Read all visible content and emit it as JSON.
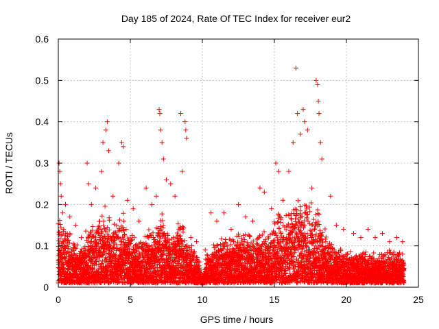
{
  "chart_data": {
    "type": "scatter",
    "title": "Day 185 of 2024, Rate Of TEC Index for receiver eur2",
    "xlabel": "GPS time / hours",
    "ylabel": "ROTI / TECUs",
    "xlim": [
      0,
      25
    ],
    "ylim": [
      0,
      0.6
    ],
    "x_ticks": [
      0,
      5,
      10,
      15,
      20,
      25
    ],
    "y_ticks": [
      0,
      0.1,
      0.2,
      0.3,
      0.4,
      0.5,
      0.6
    ],
    "grid": true,
    "legend": "none",
    "marker": "+",
    "color": "#ff0000",
    "series": [
      {
        "points": [
          [
            0.05,
            0.3
          ],
          [
            0.1,
            0.28
          ],
          [
            0.15,
            0.25
          ],
          [
            0.2,
            0.22
          ],
          [
            0.3,
            0.18
          ],
          [
            0.5,
            0.2
          ],
          [
            0.8,
            0.17
          ],
          [
            1.2,
            0.15
          ],
          [
            1.6,
            0.12
          ],
          [
            2.0,
            0.3
          ],
          [
            2.1,
            0.25
          ],
          [
            2.3,
            0.2
          ],
          [
            2.6,
            0.24
          ],
          [
            3.0,
            0.28
          ],
          [
            3.1,
            0.35
          ],
          [
            3.3,
            0.38
          ],
          [
            3.4,
            0.4
          ],
          [
            3.5,
            0.33
          ],
          [
            3.8,
            0.22
          ],
          [
            4.2,
            0.3
          ],
          [
            4.4,
            0.35
          ],
          [
            4.5,
            0.34
          ],
          [
            4.8,
            0.21
          ],
          [
            5.2,
            0.19
          ],
          [
            5.6,
            0.16
          ],
          [
            6.1,
            0.24
          ],
          [
            6.5,
            0.2
          ],
          [
            6.8,
            0.22
          ],
          [
            7.0,
            0.43
          ],
          [
            7.05,
            0.42
          ],
          [
            7.1,
            0.38
          ],
          [
            7.2,
            0.35
          ],
          [
            7.3,
            0.31
          ],
          [
            7.5,
            0.26
          ],
          [
            7.8,
            0.25
          ],
          [
            8.1,
            0.22
          ],
          [
            8.5,
            0.42
          ],
          [
            8.6,
            0.28
          ],
          [
            8.8,
            0.4
          ],
          [
            8.85,
            0.38
          ],
          [
            8.9,
            0.36
          ],
          [
            9.2,
            0.12
          ],
          [
            9.6,
            0.11
          ],
          [
            10.2,
            0.09
          ],
          [
            10.6,
            0.18
          ],
          [
            11.0,
            0.16
          ],
          [
            11.5,
            0.18
          ],
          [
            12.0,
            0.14
          ],
          [
            12.5,
            0.2
          ],
          [
            13.0,
            0.17
          ],
          [
            13.5,
            0.16
          ],
          [
            14.0,
            0.24
          ],
          [
            14.3,
            0.23
          ],
          [
            14.8,
            0.19
          ],
          [
            15.1,
            0.3
          ],
          [
            15.3,
            0.28
          ],
          [
            15.6,
            0.21
          ],
          [
            16.0,
            0.28
          ],
          [
            16.3,
            0.35
          ],
          [
            16.5,
            0.53
          ],
          [
            16.6,
            0.42
          ],
          [
            16.8,
            0.37
          ],
          [
            17.0,
            0.43
          ],
          [
            17.1,
            0.4
          ],
          [
            17.3,
            0.38
          ],
          [
            17.6,
            0.24
          ],
          [
            17.9,
            0.5
          ],
          [
            18.0,
            0.49
          ],
          [
            18.05,
            0.45
          ],
          [
            18.1,
            0.42
          ],
          [
            18.2,
            0.35
          ],
          [
            18.3,
            0.31
          ],
          [
            18.9,
            0.22
          ],
          [
            19.3,
            0.15
          ],
          [
            19.8,
            0.14
          ],
          [
            20.5,
            0.13
          ],
          [
            21.0,
            0.12
          ],
          [
            21.5,
            0.14
          ],
          [
            22.0,
            0.12
          ],
          [
            22.5,
            0.13
          ],
          [
            23.0,
            0.11
          ],
          [
            23.5,
            0.12
          ],
          [
            23.9,
            0.11
          ]
        ]
      }
    ],
    "cluster_envelope": {
      "x": [
        0.0,
        0.25,
        0.5,
        0.75,
        1.0,
        1.25,
        1.5,
        1.75,
        2.0,
        2.25,
        2.5,
        2.75,
        3.0,
        3.25,
        3.5,
        3.75,
        4.0,
        4.25,
        4.5,
        4.75,
        5.0,
        5.25,
        5.5,
        5.75,
        6.0,
        6.25,
        6.5,
        6.75,
        7.0,
        7.25,
        7.5,
        7.75,
        8.0,
        8.25,
        8.5,
        8.75,
        9.0,
        9.25,
        9.5,
        9.75,
        10.0,
        10.25,
        10.5,
        10.75,
        11.0,
        11.25,
        11.5,
        11.75,
        12.0,
        12.25,
        12.5,
        12.75,
        13.0,
        13.25,
        13.5,
        13.75,
        14.0,
        14.25,
        14.5,
        14.75,
        15.0,
        15.25,
        15.5,
        15.75,
        16.0,
        16.25,
        16.5,
        16.75,
        17.0,
        17.25,
        17.5,
        17.75,
        18.0,
        18.25,
        18.5,
        18.75,
        19.0,
        19.25,
        19.5,
        19.75,
        20.0,
        20.25,
        20.5,
        20.75,
        21.0,
        21.25,
        21.5,
        21.75,
        22.0,
        22.25,
        22.5,
        22.75,
        23.0,
        23.25,
        23.5,
        23.75,
        24.0
      ],
      "y": [
        0.2,
        0.16,
        0.15,
        0.14,
        0.12,
        0.11,
        0.1,
        0.11,
        0.15,
        0.16,
        0.15,
        0.17,
        0.19,
        0.2,
        0.19,
        0.17,
        0.16,
        0.17,
        0.18,
        0.15,
        0.14,
        0.13,
        0.12,
        0.12,
        0.14,
        0.15,
        0.14,
        0.15,
        0.18,
        0.19,
        0.17,
        0.15,
        0.15,
        0.16,
        0.18,
        0.16,
        0.1,
        0.11,
        0.1,
        0.08,
        0.0,
        0.08,
        0.1,
        0.11,
        0.12,
        0.12,
        0.13,
        0.12,
        0.12,
        0.13,
        0.14,
        0.13,
        0.14,
        0.14,
        0.13,
        0.13,
        0.14,
        0.14,
        0.13,
        0.14,
        0.18,
        0.2,
        0.18,
        0.17,
        0.2,
        0.22,
        0.24,
        0.22,
        0.22,
        0.23,
        0.22,
        0.21,
        0.2,
        0.18,
        0.15,
        0.12,
        0.11,
        0.1,
        0.1,
        0.09,
        0.09,
        0.09,
        0.09,
        0.09,
        0.09,
        0.09,
        0.09,
        0.09,
        0.09,
        0.09,
        0.09,
        0.09,
        0.09,
        0.09,
        0.09,
        0.09,
        0.09
      ]
    }
  }
}
